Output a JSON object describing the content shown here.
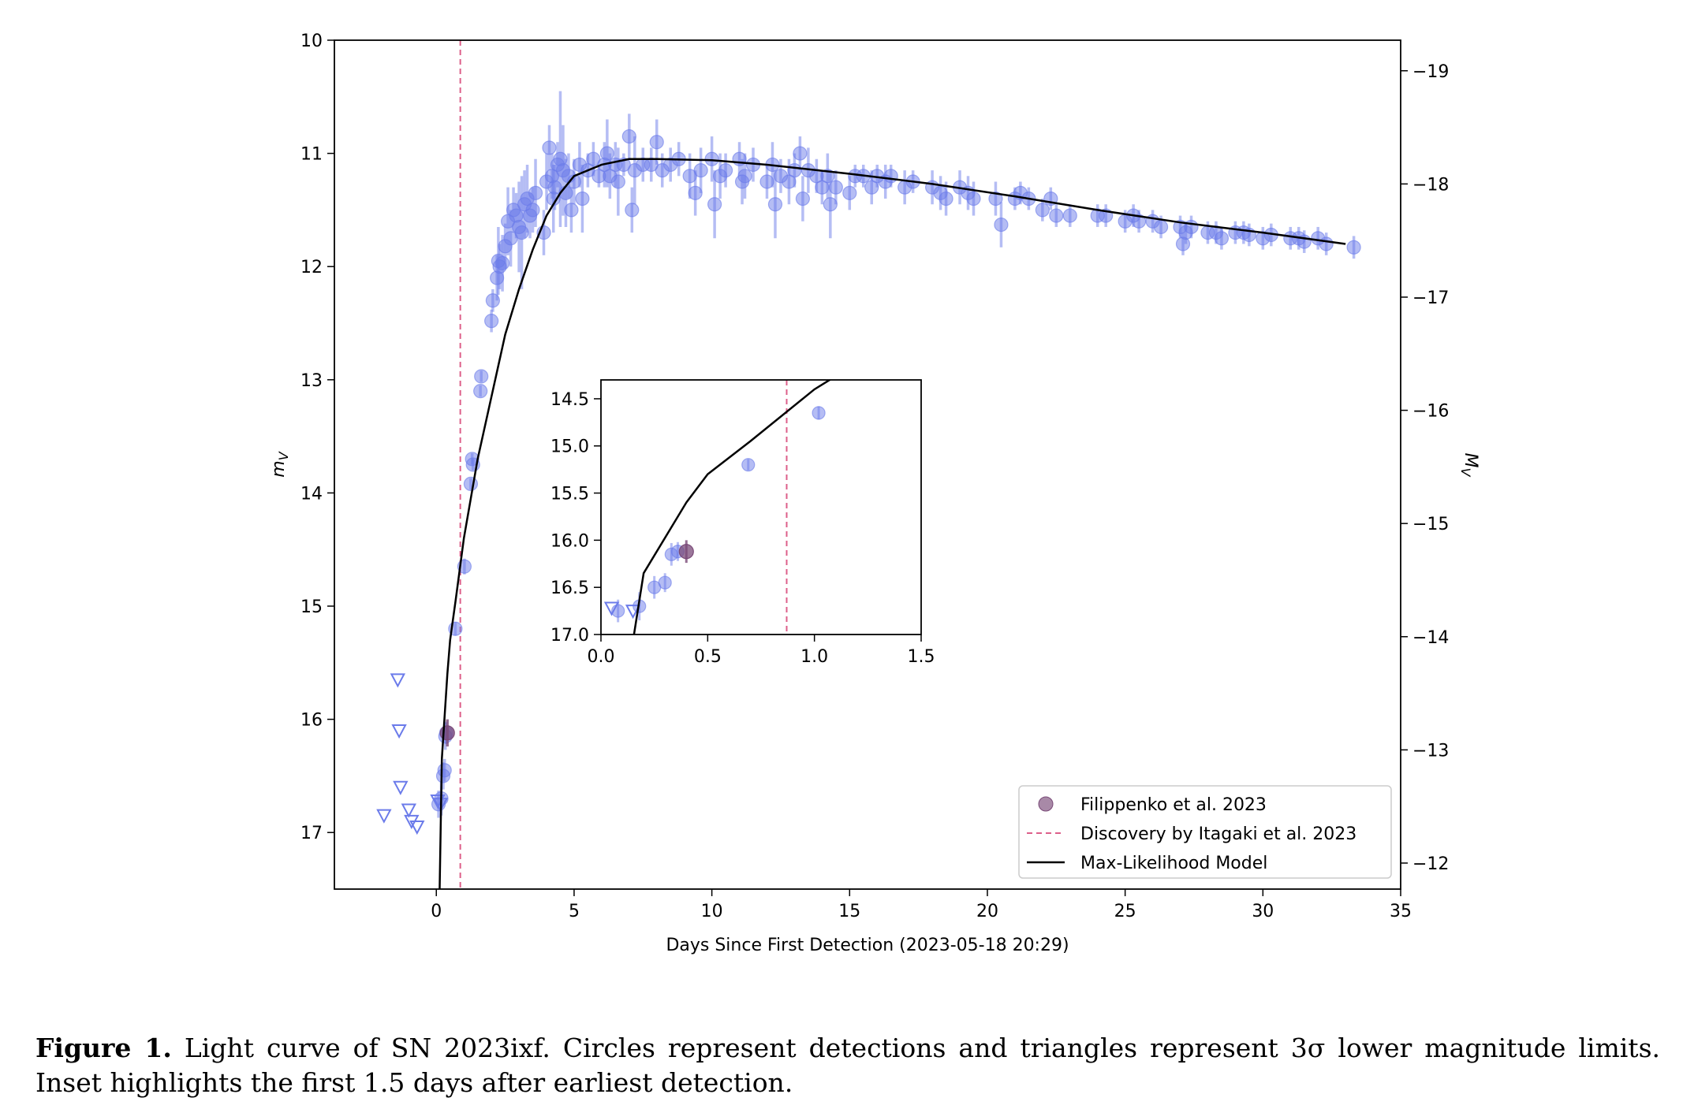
{
  "chart_data": {
    "type": "scatter",
    "xlabel": "Days Since First Detection (2023-05-18 20:29)",
    "ylabel": "m_V",
    "ylabel2": "M_V",
    "xlim": [
      -3.7,
      35
    ],
    "ylim": [
      17.5,
      10
    ],
    "y2lim": [
      -11.77,
      -19.27
    ],
    "xticks": [
      0,
      5,
      10,
      15,
      20,
      25,
      30,
      35
    ],
    "yticks": [
      10,
      11,
      12,
      13,
      14,
      15,
      16,
      17
    ],
    "y2ticks": [
      -19,
      -18,
      -17,
      -16,
      -15,
      -14,
      -13,
      -12
    ],
    "discovery_x": 0.87,
    "colors": {
      "detections": "#6b7bea",
      "filippenko": "#7a4a78",
      "discovery": "#dd5f8a",
      "model": "#000000"
    },
    "detections": [
      [
        0.08,
        16.75,
        0.12
      ],
      [
        0.18,
        16.7,
        0.15
      ],
      [
        0.25,
        16.5,
        0.12
      ],
      [
        0.3,
        16.45,
        0.1
      ],
      [
        0.33,
        16.15,
        0.12
      ],
      [
        0.36,
        16.12,
        0.1
      ],
      [
        0.69,
        15.2,
        0.06
      ],
      [
        1.02,
        14.65,
        0.07
      ],
      [
        1.25,
        13.92,
        0.05
      ],
      [
        1.3,
        13.7,
        0.05
      ],
      [
        1.33,
        13.75,
        0.05
      ],
      [
        1.6,
        13.1,
        0.05
      ],
      [
        1.63,
        12.97,
        0.05
      ],
      [
        2.0,
        12.48,
        0.1
      ],
      [
        2.05,
        12.3,
        0.1
      ],
      [
        2.2,
        12.1,
        0.2
      ],
      [
        2.25,
        11.95,
        0.3
      ],
      [
        2.3,
        12.0,
        0.2
      ],
      [
        2.4,
        11.97,
        0.25
      ],
      [
        2.5,
        11.82,
        0.2
      ],
      [
        2.6,
        11.6,
        0.3
      ],
      [
        2.7,
        11.75,
        0.25
      ],
      [
        2.8,
        11.5,
        0.2
      ],
      [
        2.9,
        11.55,
        0.2
      ],
      [
        3.0,
        11.65,
        0.4
      ],
      [
        3.1,
        11.7,
        0.5
      ],
      [
        3.2,
        11.45,
        0.3
      ],
      [
        3.3,
        11.4,
        0.3
      ],
      [
        3.4,
        11.55,
        0.2
      ],
      [
        3.5,
        11.5,
        0.2
      ],
      [
        3.6,
        11.35,
        0.3
      ],
      [
        3.9,
        11.7,
        0.2
      ],
      [
        4.0,
        11.25,
        0.25
      ],
      [
        4.1,
        10.95,
        0.2
      ],
      [
        4.2,
        11.2,
        0.2
      ],
      [
        4.25,
        11.4,
        0.3
      ],
      [
        4.3,
        11.3,
        0.2
      ],
      [
        4.4,
        11.1,
        0.2
      ],
      [
        4.5,
        11.05,
        0.6
      ],
      [
        4.6,
        11.15,
        0.4
      ],
      [
        4.7,
        11.35,
        0.3
      ],
      [
        4.8,
        11.2,
        0.2
      ],
      [
        4.9,
        11.5,
        0.2
      ],
      [
        5.0,
        11.25,
        0.2
      ],
      [
        5.2,
        11.1,
        0.2
      ],
      [
        5.3,
        11.4,
        0.3
      ],
      [
        5.5,
        11.15,
        0.15
      ],
      [
        5.7,
        11.05,
        0.15
      ],
      [
        5.9,
        11.2,
        0.1
      ],
      [
        6.1,
        11.1,
        0.2
      ],
      [
        6.2,
        11.0,
        0.3
      ],
      [
        6.3,
        11.2,
        0.2
      ],
      [
        6.5,
        11.1,
        0.2
      ],
      [
        6.6,
        11.25,
        0.3
      ],
      [
        6.8,
        11.1,
        0.1
      ],
      [
        7.0,
        10.85,
        0.2
      ],
      [
        7.1,
        11.5,
        0.2
      ],
      [
        7.2,
        11.15,
        0.3
      ],
      [
        7.5,
        11.1,
        0.15
      ],
      [
        7.8,
        11.1,
        0.15
      ],
      [
        8.0,
        10.9,
        0.2
      ],
      [
        8.2,
        11.15,
        0.15
      ],
      [
        8.5,
        11.1,
        0.15
      ],
      [
        8.8,
        11.05,
        0.15
      ],
      [
        9.2,
        11.2,
        0.2
      ],
      [
        9.4,
        11.35,
        0.2
      ],
      [
        9.6,
        11.15,
        0.2
      ],
      [
        10.0,
        11.05,
        0.2
      ],
      [
        10.1,
        11.45,
        0.3
      ],
      [
        10.3,
        11.2,
        0.2
      ],
      [
        10.5,
        11.15,
        0.15
      ],
      [
        11.0,
        11.05,
        0.15
      ],
      [
        11.1,
        11.25,
        0.2
      ],
      [
        11.2,
        11.2,
        0.2
      ],
      [
        11.5,
        11.1,
        0.15
      ],
      [
        12.0,
        11.25,
        0.15
      ],
      [
        12.2,
        11.1,
        0.2
      ],
      [
        12.3,
        11.45,
        0.3
      ],
      [
        12.5,
        11.2,
        0.15
      ],
      [
        12.8,
        11.25,
        0.2
      ],
      [
        13.0,
        11.15,
        0.15
      ],
      [
        13.2,
        11.0,
        0.15
      ],
      [
        13.3,
        11.4,
        0.2
      ],
      [
        13.5,
        11.15,
        0.2
      ],
      [
        13.8,
        11.2,
        0.15
      ],
      [
        14.0,
        11.3,
        0.15
      ],
      [
        14.2,
        11.2,
        0.2
      ],
      [
        14.3,
        11.45,
        0.3
      ],
      [
        14.5,
        11.3,
        0.15
      ],
      [
        15.0,
        11.35,
        0.15
      ],
      [
        15.2,
        11.2,
        0.1
      ],
      [
        15.5,
        11.2,
        0.1
      ],
      [
        15.8,
        11.3,
        0.15
      ],
      [
        16.0,
        11.2,
        0.1
      ],
      [
        16.3,
        11.25,
        0.15
      ],
      [
        16.5,
        11.2,
        0.1
      ],
      [
        17.0,
        11.3,
        0.15
      ],
      [
        17.3,
        11.25,
        0.1
      ],
      [
        18.0,
        11.3,
        0.15
      ],
      [
        18.3,
        11.35,
        0.15
      ],
      [
        18.5,
        11.4,
        0.15
      ],
      [
        19.0,
        11.3,
        0.15
      ],
      [
        19.3,
        11.35,
        0.15
      ],
      [
        19.5,
        11.4,
        0.15
      ],
      [
        20.3,
        11.4,
        0.15
      ],
      [
        20.5,
        11.63,
        0.2
      ],
      [
        21.0,
        11.4,
        0.1
      ],
      [
        21.2,
        11.35,
        0.1
      ],
      [
        21.5,
        11.4,
        0.1
      ],
      [
        22.0,
        11.5,
        0.1
      ],
      [
        22.3,
        11.4,
        0.1
      ],
      [
        22.5,
        11.55,
        0.1
      ],
      [
        23.0,
        11.55,
        0.1
      ],
      [
        24.0,
        11.55,
        0.1
      ],
      [
        24.3,
        11.55,
        0.1
      ],
      [
        25.0,
        11.6,
        0.1
      ],
      [
        25.3,
        11.55,
        0.1
      ],
      [
        25.5,
        11.6,
        0.1
      ],
      [
        26.0,
        11.6,
        0.1
      ],
      [
        26.3,
        11.65,
        0.1
      ],
      [
        27.0,
        11.65,
        0.1
      ],
      [
        27.1,
        11.8,
        0.1
      ],
      [
        27.2,
        11.7,
        0.1
      ],
      [
        27.4,
        11.65,
        0.1
      ],
      [
        28.0,
        11.7,
        0.1
      ],
      [
        28.3,
        11.7,
        0.1
      ],
      [
        28.5,
        11.75,
        0.1
      ],
      [
        29.0,
        11.7,
        0.1
      ],
      [
        29.3,
        11.7,
        0.1
      ],
      [
        29.5,
        11.72,
        0.1
      ],
      [
        30.0,
        11.75,
        0.1
      ],
      [
        30.3,
        11.72,
        0.1
      ],
      [
        31.0,
        11.75,
        0.1
      ],
      [
        31.3,
        11.75,
        0.1
      ],
      [
        31.5,
        11.78,
        0.1
      ],
      [
        32.0,
        11.75,
        0.1
      ],
      [
        32.3,
        11.8,
        0.1
      ],
      [
        33.3,
        11.83,
        0.1
      ]
    ],
    "upper_limits": [
      [
        -1.4,
        15.65
      ],
      [
        -1.35,
        16.1
      ],
      [
        -1.3,
        16.6
      ],
      [
        -1.0,
        16.8
      ],
      [
        -0.9,
        16.9
      ],
      [
        -0.7,
        16.95
      ],
      [
        -1.9,
        16.85
      ],
      [
        0.05,
        16.72
      ],
      [
        0.15,
        16.75
      ]
    ],
    "filippenko": [
      [
        0.4,
        16.12,
        0.12
      ]
    ],
    "model": [
      [
        0.12,
        17.5
      ],
      [
        0.2,
        16.35
      ],
      [
        0.4,
        15.6
      ],
      [
        0.5,
        15.3
      ],
      [
        0.7,
        14.95
      ],
      [
        1.0,
        14.4
      ],
      [
        1.5,
        13.7
      ],
      [
        2.0,
        13.15
      ],
      [
        2.5,
        12.6
      ],
      [
        3.0,
        12.2
      ],
      [
        3.5,
        11.85
      ],
      [
        4.0,
        11.55
      ],
      [
        4.5,
        11.35
      ],
      [
        5.0,
        11.2
      ],
      [
        6.0,
        11.1
      ],
      [
        7.0,
        11.05
      ],
      [
        8.0,
        11.05
      ],
      [
        10.0,
        11.06
      ],
      [
        12.0,
        11.1
      ],
      [
        15.0,
        11.18
      ],
      [
        18.0,
        11.27
      ],
      [
        21.0,
        11.38
      ],
      [
        24.0,
        11.5
      ],
      [
        27.0,
        11.61
      ],
      [
        30.0,
        11.7
      ],
      [
        33.0,
        11.8
      ]
    ],
    "legend": {
      "placement": "lower right",
      "entries": [
        {
          "key": "filippenko",
          "label": "Filippenko et al. 2023"
        },
        {
          "key": "discovery",
          "label": "Discovery by Itagaki et al. 2023"
        },
        {
          "key": "model",
          "label": "Max-Likelihood Model"
        }
      ]
    },
    "inset": {
      "xlim": [
        0,
        1.5
      ],
      "ylim": [
        17.0,
        14.3
      ],
      "xticks": [
        "0.0",
        "0.5",
        "1.0",
        "1.5"
      ],
      "yticks": [
        "14.5",
        "15.0",
        "15.5",
        "16.0",
        "16.5",
        "17.0"
      ]
    }
  },
  "caption": {
    "label": "Figure 1.",
    "text": "Light curve of SN 2023ixf. Circles represent detections and triangles represent 3σ lower magnitude limits. Inset highlights the first 1.5 days after earliest detection."
  }
}
